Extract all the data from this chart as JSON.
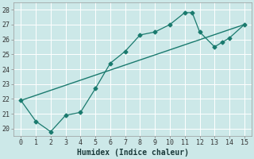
{
  "xlabel": "Humidex (Indice chaleur)",
  "xlim": [
    -0.5,
    15.5
  ],
  "ylim": [
    19.5,
    28.5
  ],
  "xticks": [
    0,
    1,
    2,
    3,
    4,
    5,
    6,
    7,
    8,
    9,
    10,
    11,
    12,
    13,
    14,
    15
  ],
  "yticks": [
    20,
    21,
    22,
    23,
    24,
    25,
    26,
    27,
    28
  ],
  "bg_color": "#cce8e8",
  "grid_color": "#b0d0d0",
  "line_color": "#1a7a6e",
  "series1_x": [
    0,
    1,
    2,
    3,
    4,
    5,
    6,
    7,
    8,
    9,
    10,
    11,
    11.5,
    12,
    13,
    13.5,
    14,
    15
  ],
  "series1_y": [
    21.9,
    20.5,
    19.8,
    20.9,
    21.1,
    22.7,
    24.4,
    25.2,
    26.3,
    26.5,
    27.0,
    27.8,
    27.8,
    26.5,
    25.5,
    25.8,
    26.1,
    27.0
  ],
  "series2_x": [
    0,
    15
  ],
  "series2_y": [
    21.9,
    27.0
  ]
}
